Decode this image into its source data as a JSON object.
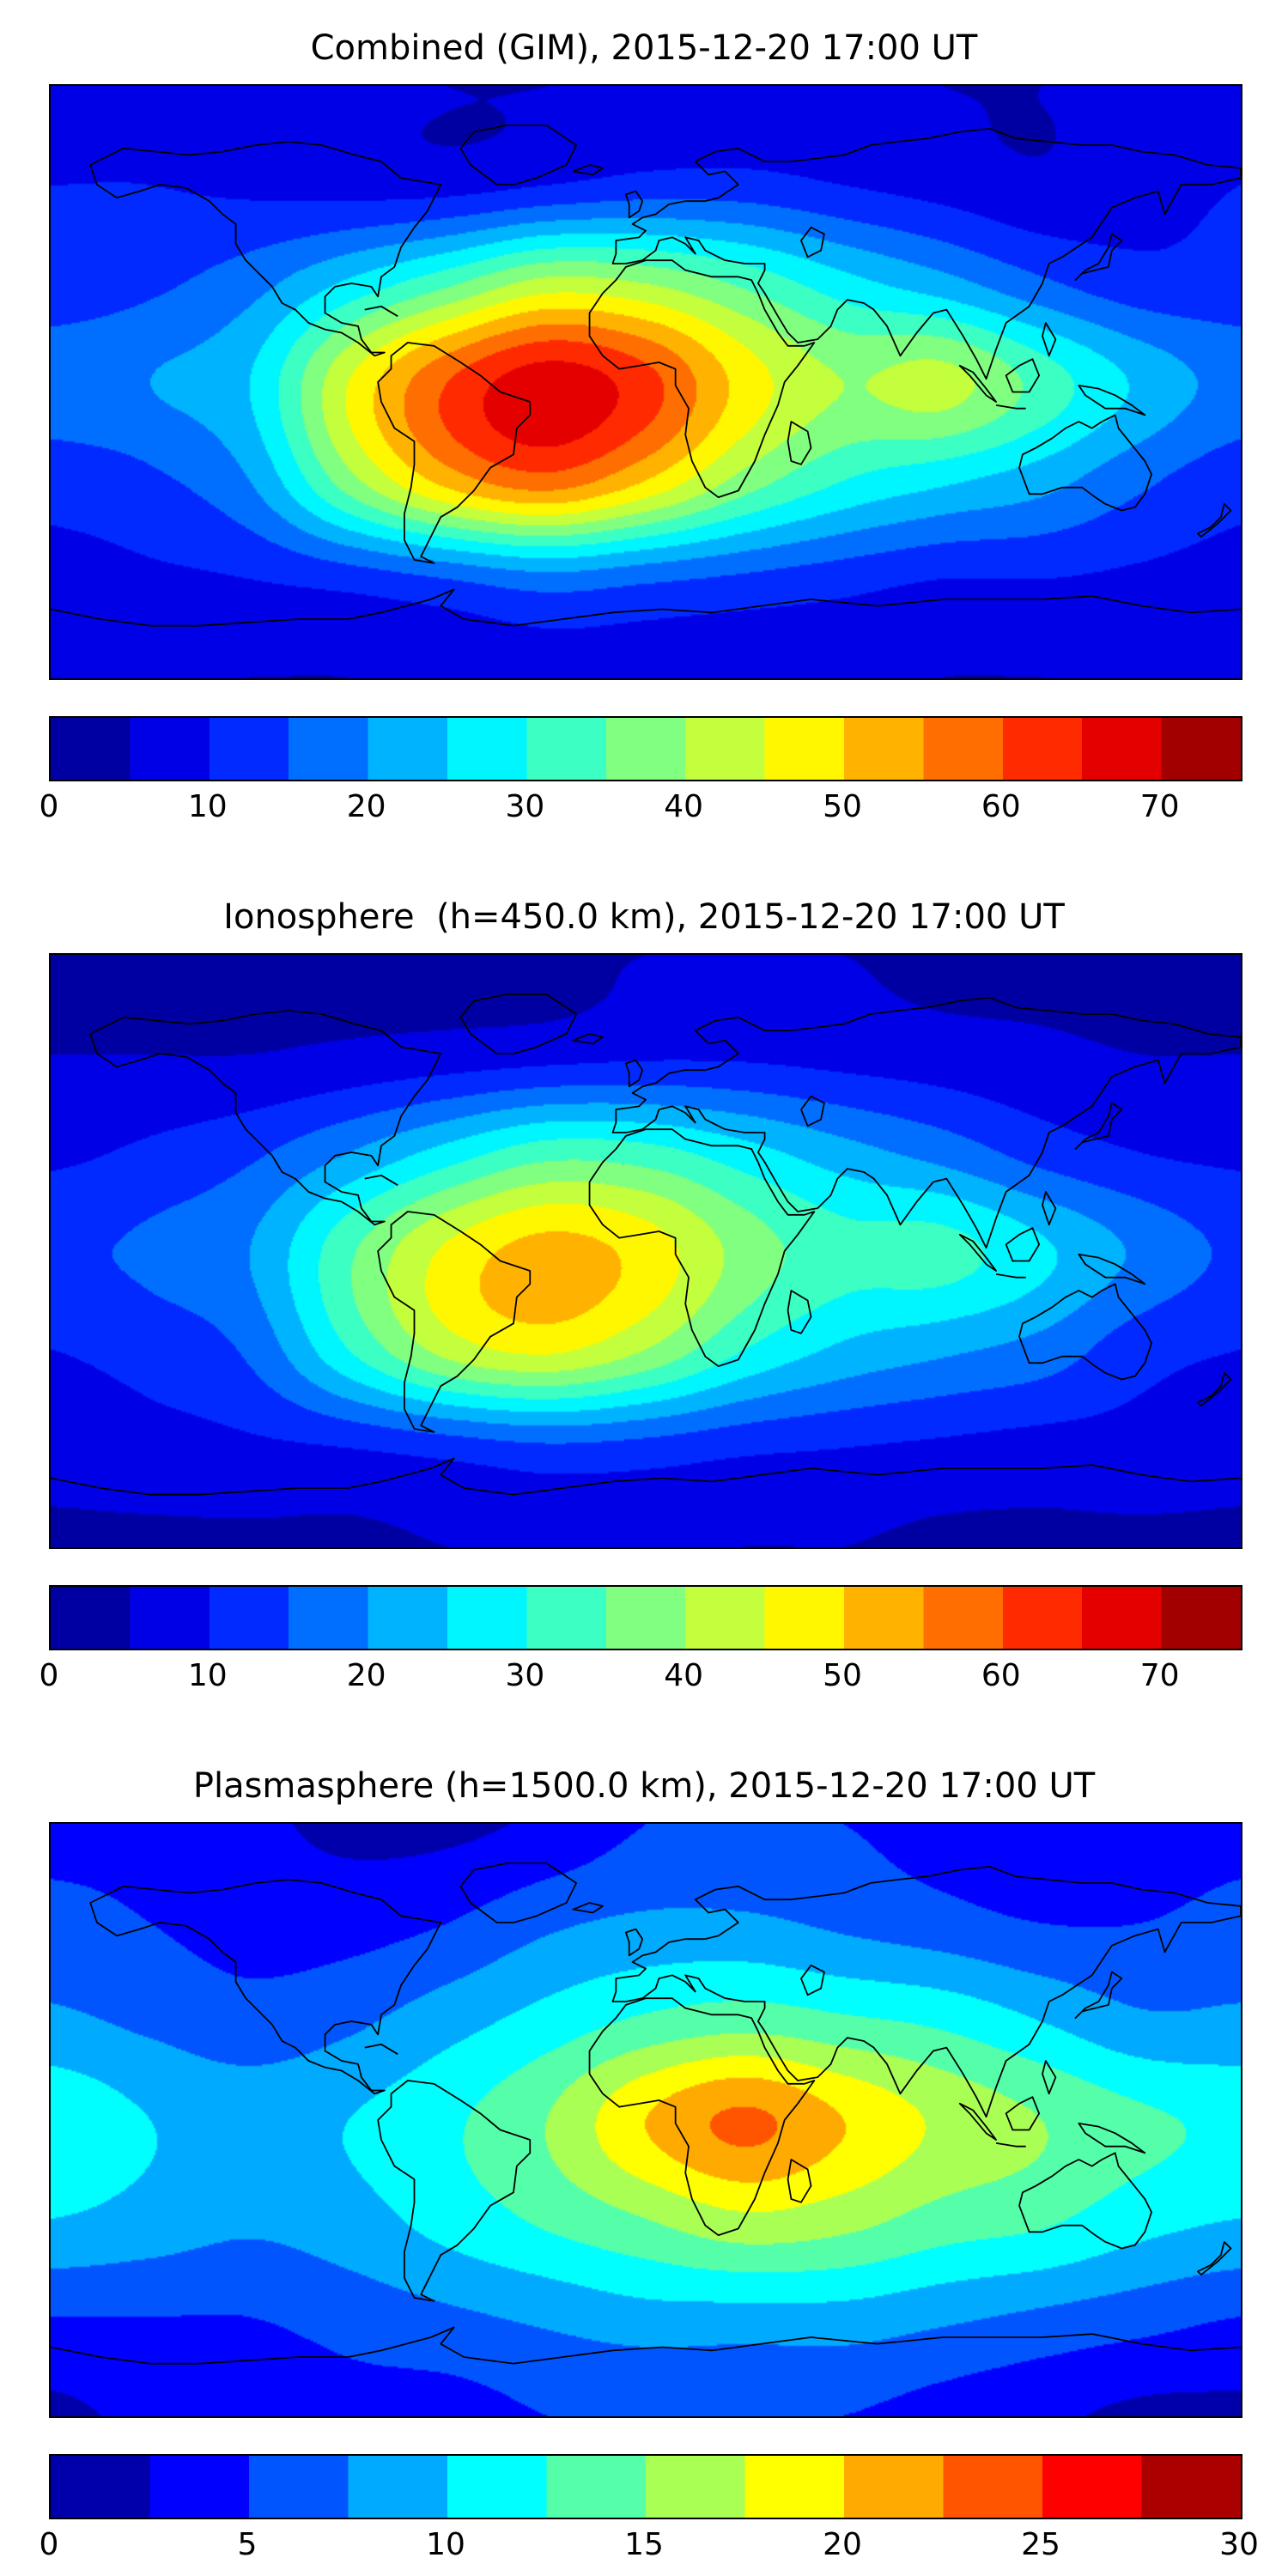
{
  "figure": {
    "background_color": "#ffffff",
    "colormap": "jet",
    "num_panels": 3
  },
  "chart_data": [
    {
      "type": "heatmap",
      "title": "Combined (GIM), 2015-12-20 17:00 UT",
      "projection": "equirectangular",
      "colormap": "jet",
      "levels": {
        "min": 0,
        "max": 75,
        "step": 5
      },
      "colorbar_ticks": [
        0,
        10,
        20,
        30,
        40,
        50,
        60,
        70
      ],
      "lats": [
        90,
        60,
        30,
        0,
        -30,
        -60,
        -90
      ],
      "lons": [
        -180,
        -150,
        -120,
        -90,
        -60,
        -30,
        0,
        30,
        60,
        90,
        120,
        150,
        180
      ],
      "values": [
        [
          8,
          8,
          7,
          6,
          5,
          5,
          6,
          6,
          6,
          5,
          5,
          6,
          8
        ],
        [
          10,
          10,
          9,
          8,
          8,
          10,
          12,
          12,
          10,
          8,
          6,
          8,
          10
        ],
        [
          12,
          14,
          18,
          26,
          34,
          42,
          40,
          34,
          27,
          22,
          16,
          12,
          12
        ],
        [
          18,
          20,
          25,
          45,
          60,
          68,
          62,
          48,
          40,
          42,
          33,
          24,
          18
        ],
        [
          12,
          14,
          20,
          38,
          52,
          58,
          50,
          38,
          30,
          26,
          22,
          16,
          12
        ],
        [
          8,
          9,
          10,
          12,
          15,
          18,
          16,
          14,
          12,
          10,
          10,
          9,
          8
        ],
        [
          5,
          5,
          5,
          5,
          6,
          7,
          7,
          6,
          6,
          5,
          5,
          5,
          5
        ]
      ]
    },
    {
      "type": "heatmap",
      "title": "Ionosphere  (h=450.0 km), 2015-12-20 17:00 UT",
      "projection": "equirectangular",
      "colormap": "jet",
      "levels": {
        "min": 0,
        "max": 75,
        "step": 5
      },
      "colorbar_ticks": [
        0,
        10,
        20,
        30,
        40,
        50,
        60,
        70
      ],
      "lats": [
        90,
        60,
        30,
        0,
        -30,
        -60,
        -90
      ],
      "lons": [
        -180,
        -150,
        -120,
        -90,
        -60,
        -30,
        0,
        30,
        60,
        90,
        120,
        150,
        180
      ],
      "values": [
        [
          4,
          4,
          4,
          4,
          4,
          4,
          5,
          5,
          5,
          4,
          4,
          4,
          4
        ],
        [
          5,
          5,
          5,
          6,
          7,
          8,
          9,
          9,
          8,
          7,
          6,
          5,
          5
        ],
        [
          9,
          11,
          14,
          20,
          27,
          33,
          32,
          27,
          22,
          18,
          13,
          10,
          9
        ],
        [
          14,
          16,
          20,
          34,
          46,
          52,
          48,
          38,
          32,
          32,
          26,
          19,
          14
        ],
        [
          10,
          12,
          16,
          30,
          42,
          46,
          40,
          30,
          24,
          21,
          18,
          12,
          10
        ],
        [
          7,
          8,
          9,
          10,
          12,
          14,
          13,
          11,
          10,
          9,
          8,
          8,
          7
        ],
        [
          4,
          4,
          4,
          4,
          5,
          6,
          6,
          5,
          5,
          4,
          4,
          4,
          4
        ]
      ]
    },
    {
      "type": "heatmap",
      "title": "Plasmasphere (h=1500.0 km), 2015-12-20 17:00 UT",
      "projection": "equirectangular",
      "colormap": "jet",
      "levels": {
        "min": 0,
        "max": 30,
        "step": 2.5
      },
      "colorbar_ticks": [
        0,
        5,
        10,
        15,
        20,
        25,
        30
      ],
      "lats": [
        90,
        60,
        30,
        0,
        -30,
        -60,
        -90
      ],
      "lons": [
        -180,
        -150,
        -120,
        -90,
        -60,
        -30,
        0,
        30,
        60,
        90,
        120,
        150,
        180
      ],
      "values": [
        [
          4,
          4,
          3,
          2,
          2,
          3,
          5,
          5,
          5,
          4,
          3,
          3,
          4
        ],
        [
          6,
          5,
          4,
          4,
          5,
          7,
          8,
          8,
          7,
          6,
          5,
          5,
          6
        ],
        [
          8,
          7,
          6,
          7,
          9,
          11,
          13,
          14,
          13,
          12,
          10,
          8,
          8
        ],
        [
          12,
          10,
          9,
          10,
          12,
          15,
          20,
          23,
          20,
          17,
          15,
          13,
          12
        ],
        [
          10,
          9,
          8,
          9,
          11,
          13,
          15,
          17,
          16,
          14,
          13,
          11,
          10
        ],
        [
          5,
          5,
          5,
          6,
          7,
          8,
          9,
          9,
          9,
          8,
          7,
          6,
          5
        ],
        [
          2,
          3,
          3,
          4,
          4,
          5,
          5,
          5,
          5,
          4,
          3,
          2,
          2
        ]
      ]
    }
  ]
}
